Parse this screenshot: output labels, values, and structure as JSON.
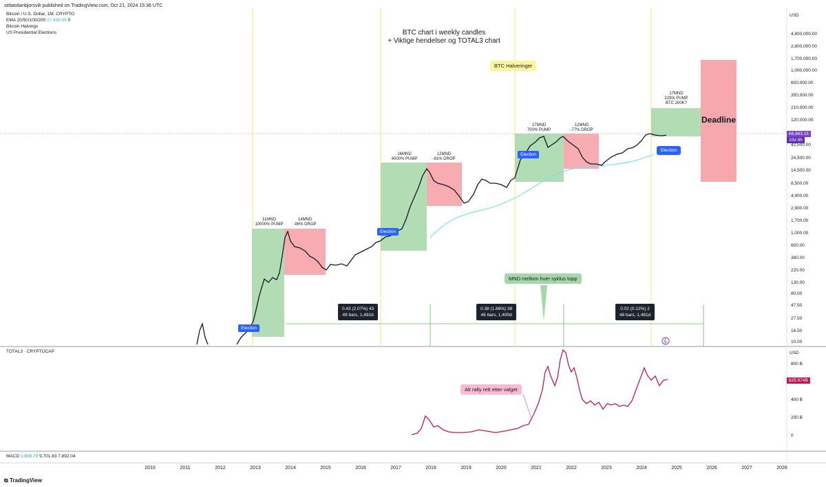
{
  "publisher": "sebastianbjorsvik published on TradingView.com, Oct 21, 2024 15:36 UTC",
  "legend": {
    "symbol": "Bitcoin / U.S. Dollar, 1M, CRYPTO",
    "ema_label": "EMA 20/50/100/200",
    "ema_value": "27,438.89",
    "ema_zero": "0",
    "halvings": "Bitcoin Halvings",
    "elections": "US Presidential Elections"
  },
  "title_line1": "BTC chart i weekly candles",
  "title_line2": "+ Viktige hendelser og TOTAL3 chart",
  "currency": "USD",
  "price_axis": [
    "4,800,000.00",
    "2,800,000.00",
    "1,700,000.00",
    "1,000,000.00",
    "600,000.00",
    "350,000.00",
    "210,000.00",
    "120,000.00",
    "42,500.00",
    "24,500.00",
    "14,500.00",
    "8,500.00",
    "4,900.00",
    "2,900.00",
    "1,700.00",
    "1,000.00",
    "600.00",
    "360.00",
    "220.00",
    "130.00",
    "80.00",
    "47.50",
    "27.50",
    "16.50",
    "10.00"
  ],
  "current_price": "66,963.15",
  "countdown": "10d 9h",
  "callouts": {
    "halvings": "BTC Halveringer",
    "deadline": "Deadline",
    "cycle_top": "MND mellom hver syklus topp",
    "alt_rally": "Alt rally rett etter valget",
    "election_main": "Election",
    "election_small": "Election"
  },
  "cycles": [
    {
      "pump": "11MND\n10000% PUMP",
      "drop": "14MND\n-86% DROP"
    },
    {
      "pump": "16MND\n4000% PUMP",
      "drop": "12MND\n-81% DROP"
    },
    {
      "pump": "17MND\n700% PUMP",
      "drop": "12MND\n-77% DROP"
    },
    {
      "pump": "17MND\n229% PUMP\nBTC 200K?"
    }
  ],
  "measures": [
    {
      "line1": "0.43 (2.07%) 43",
      "line2": "49 bars, 1,492d"
    },
    {
      "line1": "0.38 (1.86%) 38",
      "line2": "46 bars, 1,400d"
    },
    {
      "line1": "0.02 (0.12%) 2",
      "line2": "48 bars, 1,461d"
    }
  ],
  "total3": {
    "label": "TOTAL3 · CRYPTOCAP",
    "axis": [
      "800 B",
      "600 B",
      "400 B",
      "200 B",
      "0"
    ],
    "current": "625.974B"
  },
  "macd": {
    "label": "MACD",
    "v1": "1,809.79",
    "v2": "9,701.83",
    "v3": "7,892.04"
  },
  "years": [
    "2010",
    "2011",
    "2012",
    "2013",
    "2014",
    "2015",
    "2016",
    "2017",
    "2018",
    "2019",
    "2020",
    "2021",
    "2022",
    "2023",
    "2024",
    "2025",
    "2026",
    "2027",
    "2028"
  ],
  "footer": "TradingView",
  "colors": {
    "green_box": "#a5d6a7",
    "red_box": "#f5a3a8",
    "ema": "#7fe0ec",
    "total3": "#c2185b",
    "price_tag": "#7b3fcf",
    "halving_line": "#f9e079"
  }
}
